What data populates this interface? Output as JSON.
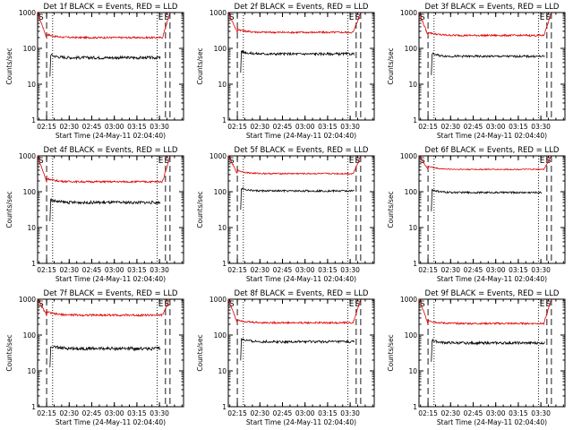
{
  "colors": {
    "events": "#000000",
    "lld": "#e00000",
    "axis": "#000000",
    "background": "#ffffff"
  },
  "common": {
    "ylabel": "Counts/sec",
    "xlabel": "Start Time (24-May-11 02:04:40)",
    "xticks": [
      "02:15",
      "02:30",
      "02:45",
      "03:00",
      "03:15",
      "03:30"
    ],
    "yticks": [
      "1",
      "10",
      "100",
      "1000"
    ],
    "marker_S": "S",
    "marker_E": "E"
  },
  "chart_data": [
    {
      "type": "line",
      "title": "Det 1f BLACK = Events, RED = LLD",
      "x_range_min": [
        4.3,
        101.3
      ],
      "ylim": [
        1,
        1000
      ],
      "y_scale": "log",
      "series": [
        {
          "values": {
            "lld_level": 200,
            "lld_noise": 0.05,
            "ev_level": 55,
            "ev_noise": 0.08,
            "ev_start_min": 13,
            "ev_end_min": 86
          }
        }
      ],
      "vlines_dashed_min": [
        10.3,
        89.3,
        92.3
      ],
      "vlines_dotted_min": [
        14.3,
        83.8
      ]
    },
    {
      "type": "line",
      "title": "Det 2f BLACK = Events, RED = LLD",
      "x_range_min": [
        4.3,
        101.3
      ],
      "ylim": [
        1,
        1000
      ],
      "y_scale": "log",
      "series": [
        {
          "values": {
            "lld_level": 280,
            "lld_noise": 0.05,
            "ev_level": 70,
            "ev_noise": 0.07,
            "ev_start_min": 13,
            "ev_end_min": 88
          }
        }
      ],
      "vlines_dashed_min": [
        10.3,
        89.3,
        92.3
      ],
      "vlines_dotted_min": [
        14.3,
        83.8
      ]
    },
    {
      "type": "line",
      "title": "Det 3f BLACK = Events, RED = LLD",
      "x_range_min": [
        4.3,
        101.3
      ],
      "ylim": [
        1,
        1000
      ],
      "y_scale": "log",
      "series": [
        {
          "values": {
            "lld_level": 230,
            "lld_noise": 0.05,
            "ev_level": 60,
            "ev_noise": 0.06,
            "ev_start_min": 13,
            "ev_end_min": 88
          }
        }
      ],
      "vlines_dashed_min": [
        10.3,
        89.3,
        92.3
      ],
      "vlines_dotted_min": [
        14.3,
        83.8
      ]
    },
    {
      "type": "line",
      "title": "Det 4f BLACK = Events, RED = LLD",
      "x_range_min": [
        4.3,
        101.3
      ],
      "ylim": [
        1,
        1000
      ],
      "y_scale": "log",
      "series": [
        {
          "values": {
            "lld_level": 190,
            "lld_noise": 0.05,
            "ev_level": 50,
            "ev_noise": 0.08,
            "ev_start_min": 13,
            "ev_end_min": 86
          }
        }
      ],
      "vlines_dashed_min": [
        10.3,
        89.3,
        92.3
      ],
      "vlines_dotted_min": [
        14.3,
        83.8
      ]
    },
    {
      "type": "line",
      "title": "Det 5f BLACK = Events, RED = LLD",
      "x_range_min": [
        4.3,
        101.3
      ],
      "ylim": [
        1,
        1000
      ],
      "y_scale": "log",
      "series": [
        {
          "values": {
            "lld_level": 320,
            "lld_noise": 0.04,
            "ev_level": 105,
            "ev_noise": 0.05,
            "ev_start_min": 13,
            "ev_end_min": 88
          }
        }
      ],
      "vlines_dashed_min": [
        10.3,
        89.3,
        92.3
      ],
      "vlines_dotted_min": [
        14.3,
        83.8
      ]
    },
    {
      "type": "line",
      "title": "Det 6f BLACK = Events, RED = LLD",
      "x_range_min": [
        4.3,
        101.3
      ],
      "ylim": [
        1,
        1000
      ],
      "y_scale": "log",
      "series": [
        {
          "values": {
            "lld_level": 420,
            "lld_noise": 0.03,
            "ev_level": 95,
            "ev_noise": 0.05,
            "ev_start_min": 13,
            "ev_end_min": 86
          }
        }
      ],
      "vlines_dashed_min": [
        10.3,
        89.3,
        92.3
      ],
      "vlines_dotted_min": [
        14.3,
        83.8
      ]
    },
    {
      "type": "line",
      "title": "Det 7f BLACK = Events, RED = LLD",
      "x_range_min": [
        4.3,
        101.3
      ],
      "ylim": [
        1,
        1000
      ],
      "y_scale": "log",
      "series": [
        {
          "values": {
            "lld_level": 360,
            "lld_noise": 0.06,
            "ev_level": 42,
            "ev_noise": 0.09,
            "ev_start_min": 13,
            "ev_end_min": 86
          }
        }
      ],
      "vlines_dashed_min": [
        10.3,
        89.3,
        92.3
      ],
      "vlines_dotted_min": [
        14.3,
        83.8
      ]
    },
    {
      "type": "line",
      "title": "Det 8f BLACK = Events, RED = LLD",
      "x_range_min": [
        4.3,
        101.3
      ],
      "ylim": [
        1,
        1000
      ],
      "y_scale": "log",
      "series": [
        {
          "values": {
            "lld_level": 220,
            "lld_noise": 0.05,
            "ev_level": 65,
            "ev_noise": 0.07,
            "ev_start_min": 13,
            "ev_end_min": 88
          }
        }
      ],
      "vlines_dashed_min": [
        10.3,
        89.3,
        92.3
      ],
      "vlines_dotted_min": [
        14.3,
        83.8
      ]
    },
    {
      "type": "line",
      "title": "Det 9f BLACK = Events, RED = LLD",
      "x_range_min": [
        4.3,
        101.3
      ],
      "ylim": [
        1,
        1000
      ],
      "y_scale": "log",
      "series": [
        {
          "values": {
            "lld_level": 210,
            "lld_noise": 0.05,
            "ev_level": 60,
            "ev_noise": 0.07,
            "ev_start_min": 13,
            "ev_end_min": 88
          }
        }
      ],
      "vlines_dashed_min": [
        10.3,
        89.3,
        92.3
      ],
      "vlines_dotted_min": [
        14.3,
        83.8
      ]
    }
  ]
}
